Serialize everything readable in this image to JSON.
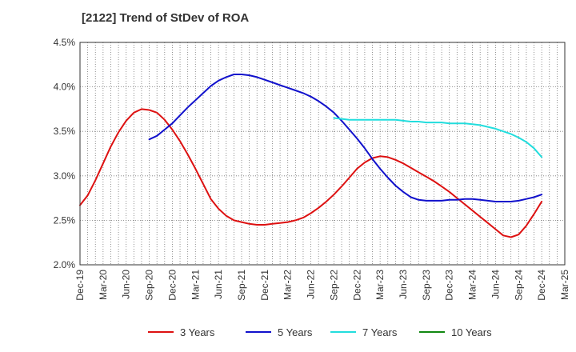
{
  "chart_data": {
    "type": "line",
    "title": "[2122]  Trend of StDev of ROA",
    "xlabel": "",
    "ylabel": "",
    "x_ticks": [
      "Dec-19",
      "Mar-20",
      "Jun-20",
      "Sep-20",
      "Dec-20",
      "Mar-21",
      "Jun-21",
      "Sep-21",
      "Dec-21",
      "Mar-22",
      "Jun-22",
      "Sep-22",
      "Dec-22",
      "Mar-23",
      "Jun-23",
      "Sep-23",
      "Dec-23",
      "Mar-24",
      "Jun-24",
      "Sep-24",
      "Dec-24",
      "Mar-25"
    ],
    "y_ticks": [
      "2.0%",
      "2.5%",
      "3.0%",
      "3.5%",
      "4.0%",
      "4.5%"
    ],
    "ylim": [
      2.0,
      4.5
    ],
    "grid": true,
    "legend_position": "bottom",
    "series": [
      {
        "name": "3 Years",
        "color": "#dd1111",
        "points": [
          [
            "Dec-19",
            2.67
          ],
          [
            "Jan-20",
            2.78
          ],
          [
            "Feb-20",
            2.95
          ],
          [
            "Mar-20",
            3.14
          ],
          [
            "Apr-20",
            3.33
          ],
          [
            "May-20",
            3.49
          ],
          [
            "Jun-20",
            3.62
          ],
          [
            "Jul-20",
            3.71
          ],
          [
            "Aug-20",
            3.75
          ],
          [
            "Sep-20",
            3.74
          ],
          [
            "Oct-20",
            3.71
          ],
          [
            "Nov-20",
            3.63
          ],
          [
            "Dec-20",
            3.52
          ],
          [
            "Jan-21",
            3.39
          ],
          [
            "Feb-21",
            3.24
          ],
          [
            "Mar-21",
            3.08
          ],
          [
            "Apr-21",
            2.91
          ],
          [
            "May-21",
            2.74
          ],
          [
            "Jun-21",
            2.63
          ],
          [
            "Jul-21",
            2.55
          ],
          [
            "Aug-21",
            2.5
          ],
          [
            "Sep-21",
            2.48
          ],
          [
            "Oct-21",
            2.46
          ],
          [
            "Nov-21",
            2.45
          ],
          [
            "Dec-21",
            2.45
          ],
          [
            "Jan-22",
            2.46
          ],
          [
            "Feb-22",
            2.47
          ],
          [
            "Mar-22",
            2.48
          ],
          [
            "Apr-22",
            2.5
          ],
          [
            "May-22",
            2.53
          ],
          [
            "Jun-22",
            2.58
          ],
          [
            "Jul-22",
            2.64
          ],
          [
            "Aug-22",
            2.71
          ],
          [
            "Sep-22",
            2.79
          ],
          [
            "Oct-22",
            2.88
          ],
          [
            "Nov-22",
            2.98
          ],
          [
            "Dec-22",
            3.08
          ],
          [
            "Jan-23",
            3.15
          ],
          [
            "Feb-23",
            3.2
          ],
          [
            "Mar-23",
            3.22
          ],
          [
            "Apr-23",
            3.21
          ],
          [
            "May-23",
            3.18
          ],
          [
            "Jun-23",
            3.14
          ],
          [
            "Jul-23",
            3.09
          ],
          [
            "Aug-23",
            3.04
          ],
          [
            "Sep-23",
            2.99
          ],
          [
            "Oct-23",
            2.94
          ],
          [
            "Nov-23",
            2.88
          ],
          [
            "Dec-23",
            2.82
          ],
          [
            "Jan-24",
            2.75
          ],
          [
            "Feb-24",
            2.68
          ],
          [
            "Mar-24",
            2.61
          ],
          [
            "Apr-24",
            2.54
          ],
          [
            "May-24",
            2.47
          ],
          [
            "Jun-24",
            2.4
          ],
          [
            "Jul-24",
            2.33
          ],
          [
            "Aug-24",
            2.31
          ],
          [
            "Sep-24",
            2.34
          ],
          [
            "Oct-24",
            2.44
          ],
          [
            "Nov-24",
            2.57
          ],
          [
            "Dec-24",
            2.71
          ]
        ]
      },
      {
        "name": "5 Years",
        "color": "#1111cc",
        "points": [
          [
            "Sep-20",
            3.41
          ],
          [
            "Oct-20",
            3.45
          ],
          [
            "Nov-20",
            3.52
          ],
          [
            "Dec-20",
            3.59
          ],
          [
            "Jan-21",
            3.68
          ],
          [
            "Feb-21",
            3.77
          ],
          [
            "Mar-21",
            3.85
          ],
          [
            "Apr-21",
            3.93
          ],
          [
            "May-21",
            4.01
          ],
          [
            "Jun-21",
            4.07
          ],
          [
            "Jul-21",
            4.11
          ],
          [
            "Aug-21",
            4.14
          ],
          [
            "Sep-21",
            4.14
          ],
          [
            "Oct-21",
            4.13
          ],
          [
            "Nov-21",
            4.11
          ],
          [
            "Dec-21",
            4.08
          ],
          [
            "Jan-22",
            4.05
          ],
          [
            "Feb-22",
            4.02
          ],
          [
            "Mar-22",
            3.99
          ],
          [
            "Apr-22",
            3.96
          ],
          [
            "May-22",
            3.93
          ],
          [
            "Jun-22",
            3.89
          ],
          [
            "Jul-22",
            3.84
          ],
          [
            "Aug-22",
            3.78
          ],
          [
            "Sep-22",
            3.71
          ],
          [
            "Oct-22",
            3.62
          ],
          [
            "Nov-22",
            3.52
          ],
          [
            "Dec-22",
            3.42
          ],
          [
            "Jan-23",
            3.31
          ],
          [
            "Feb-23",
            3.19
          ],
          [
            "Mar-23",
            3.08
          ],
          [
            "Apr-23",
            2.98
          ],
          [
            "May-23",
            2.89
          ],
          [
            "Jun-23",
            2.82
          ],
          [
            "Jul-23",
            2.76
          ],
          [
            "Aug-23",
            2.73
          ],
          [
            "Sep-23",
            2.72
          ],
          [
            "Oct-23",
            2.72
          ],
          [
            "Nov-23",
            2.72
          ],
          [
            "Dec-23",
            2.73
          ],
          [
            "Jan-24",
            2.73
          ],
          [
            "Feb-24",
            2.74
          ],
          [
            "Mar-24",
            2.74
          ],
          [
            "Apr-24",
            2.73
          ],
          [
            "May-24",
            2.72
          ],
          [
            "Jun-24",
            2.71
          ],
          [
            "Jul-24",
            2.71
          ],
          [
            "Aug-24",
            2.71
          ],
          [
            "Sep-24",
            2.72
          ],
          [
            "Oct-24",
            2.74
          ],
          [
            "Nov-24",
            2.76
          ],
          [
            "Dec-24",
            2.79
          ]
        ]
      },
      {
        "name": "7 Years",
        "color": "#22dddd",
        "points": [
          [
            "Sep-22",
            3.65
          ],
          [
            "Oct-22",
            3.64
          ],
          [
            "Nov-22",
            3.63
          ],
          [
            "Dec-22",
            3.63
          ],
          [
            "Jan-23",
            3.63
          ],
          [
            "Feb-23",
            3.63
          ],
          [
            "Mar-23",
            3.63
          ],
          [
            "Apr-23",
            3.63
          ],
          [
            "May-23",
            3.63
          ],
          [
            "Jun-23",
            3.62
          ],
          [
            "Jul-23",
            3.61
          ],
          [
            "Aug-23",
            3.61
          ],
          [
            "Sep-23",
            3.6
          ],
          [
            "Oct-23",
            3.6
          ],
          [
            "Nov-23",
            3.6
          ],
          [
            "Dec-23",
            3.59
          ],
          [
            "Jan-24",
            3.59
          ],
          [
            "Feb-24",
            3.59
          ],
          [
            "Mar-24",
            3.58
          ],
          [
            "Apr-24",
            3.57
          ],
          [
            "May-24",
            3.55
          ],
          [
            "Jun-24",
            3.53
          ],
          [
            "Jul-24",
            3.5
          ],
          [
            "Aug-24",
            3.47
          ],
          [
            "Sep-24",
            3.43
          ],
          [
            "Oct-24",
            3.38
          ],
          [
            "Nov-24",
            3.31
          ],
          [
            "Dec-24",
            3.21
          ]
        ]
      },
      {
        "name": "10 Years",
        "color": "#118811",
        "points": []
      }
    ]
  }
}
